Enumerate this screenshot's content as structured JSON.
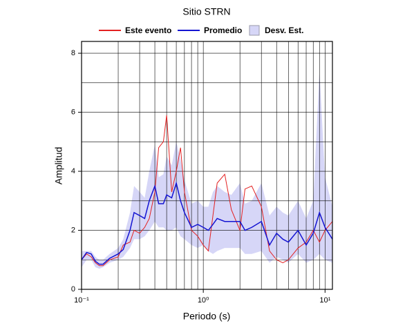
{
  "chart_data": {
    "type": "line",
    "title": "Sitio STRN",
    "x_label": "Periodo (s)",
    "y_label": "Amplitud",
    "x_log": true,
    "x": [
      0.1,
      0.11,
      0.12,
      0.13,
      0.14,
      0.15,
      0.17,
      0.2,
      0.22,
      0.25,
      0.27,
      0.3,
      0.33,
      0.36,
      0.4,
      0.43,
      0.47,
      0.5,
      0.55,
      0.6,
      0.65,
      0.7,
      0.8,
      0.9,
      1.0,
      1.1,
      1.2,
      1.3,
      1.5,
      1.7,
      2.0,
      2.2,
      2.5,
      3.0,
      3.5,
      4.0,
      4.5,
      5.0,
      6.0,
      7.0,
      8.0,
      9.0,
      10,
      11.5
    ],
    "series": [
      {
        "name": "Este evento",
        "color": "#e32020",
        "values": [
          1.0,
          1.2,
          1.1,
          0.9,
          0.8,
          0.8,
          1.0,
          1.1,
          1.5,
          1.6,
          2.0,
          1.9,
          2.1,
          2.4,
          3.3,
          4.8,
          5.0,
          5.9,
          3.3,
          4.0,
          4.8,
          3.3,
          2.0,
          1.8,
          1.5,
          1.3,
          2.5,
          3.6,
          3.9,
          2.7,
          2.0,
          3.4,
          3.5,
          2.8,
          1.3,
          1.0,
          0.9,
          1.0,
          1.4,
          1.6,
          2.0,
          1.6,
          2.0,
          2.3
        ]
      },
      {
        "name": "Promedio",
        "color": "#1414d2",
        "values": [
          1.0,
          1.25,
          1.2,
          0.95,
          0.85,
          0.85,
          1.05,
          1.2,
          1.35,
          2.0,
          2.6,
          2.5,
          2.4,
          3.0,
          3.5,
          2.9,
          2.9,
          3.2,
          3.1,
          3.6,
          3.0,
          2.6,
          2.1,
          2.2,
          2.1,
          2.0,
          2.2,
          2.4,
          2.3,
          2.3,
          2.3,
          2.0,
          2.1,
          2.3,
          1.5,
          1.9,
          1.7,
          1.6,
          2.0,
          1.5,
          1.9,
          2.6,
          2.1,
          1.7
        ]
      },
      {
        "name": "Desv. Est.",
        "color": "#d6d6f7",
        "band": true,
        "lower": [
          0.75,
          1.0,
          1.0,
          0.75,
          0.7,
          0.75,
          0.9,
          1.0,
          1.1,
          1.4,
          1.7,
          1.7,
          1.8,
          2.0,
          2.3,
          2.1,
          2.1,
          2.0,
          2.0,
          2.1,
          1.8,
          1.7,
          1.5,
          1.4,
          1.5,
          1.3,
          1.2,
          1.3,
          1.4,
          1.4,
          1.4,
          1.2,
          1.2,
          1.3,
          0.9,
          1.1,
          1.0,
          0.9,
          1.2,
          0.9,
          1.0,
          1.2,
          1.0,
          0.9
        ],
        "upper": [
          1.3,
          1.3,
          1.3,
          1.1,
          1.0,
          1.0,
          1.2,
          1.4,
          1.7,
          2.6,
          3.5,
          3.3,
          3.1,
          4.0,
          4.9,
          3.8,
          3.9,
          4.5,
          4.2,
          5.0,
          4.4,
          3.7,
          2.9,
          3.0,
          2.8,
          2.8,
          3.3,
          3.5,
          3.3,
          3.2,
          3.6,
          2.9,
          3.0,
          3.6,
          2.5,
          2.8,
          2.6,
          2.5,
          3.0,
          2.4,
          3.0,
          7.4,
          3.8,
          2.8
        ]
      }
    ],
    "xlim": [
      0.1,
      11.5
    ],
    "ylim": [
      0,
      8.4
    ],
    "xticks": [
      {
        "value": 0.1,
        "label": "10⁻¹"
      },
      {
        "value": 1,
        "label": "10⁰"
      },
      {
        "value": 10,
        "label": "10¹"
      }
    ],
    "xminor": [
      0.2,
      0.3,
      0.4,
      0.5,
      0.6,
      0.7,
      0.8,
      0.9,
      2,
      3,
      4,
      5,
      6,
      7,
      8,
      9
    ],
    "yticks": [
      0,
      2,
      4,
      6,
      8
    ],
    "yminor": [
      1,
      3,
      5,
      7
    ],
    "grid": true,
    "legend": "top"
  }
}
